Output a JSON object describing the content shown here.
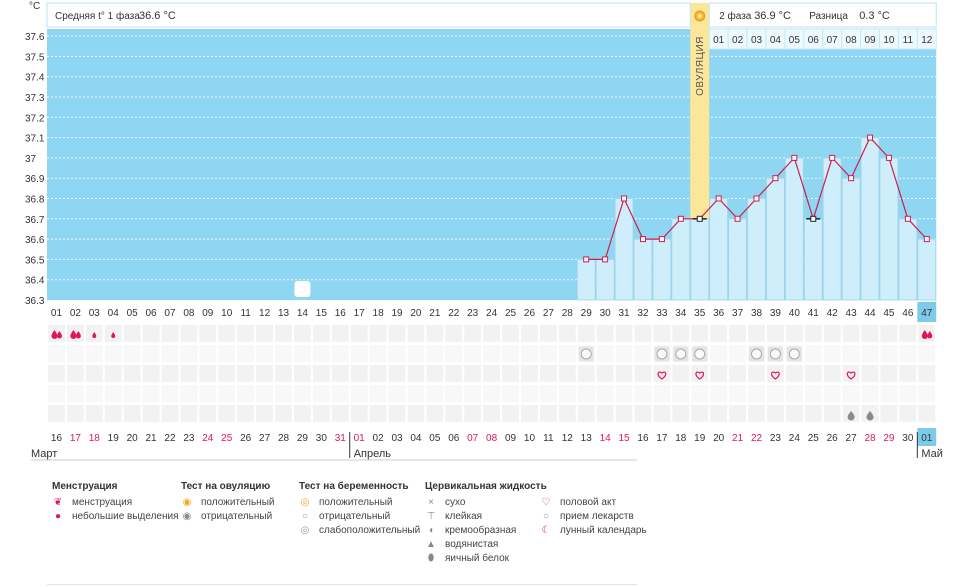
{
  "chart_data": {
    "type": "line",
    "unit_label": "°С",
    "y_ticks": [
      "37.6",
      "37.5",
      "37.4",
      "37.3",
      "37.2",
      "37.1",
      "37",
      "36.9",
      "36.8",
      "36.7",
      "36.6",
      "36.5",
      "36.4",
      "36.3"
    ],
    "ylim": [
      36.3,
      37.7
    ],
    "phase1_label": "Средняя t° 1 фаза",
    "phase1_value": "36.6 °C",
    "phase2_label": "2 фаза",
    "phase2_value": "36.9 °C",
    "diff_label": "Разница",
    "diff_value": "0.3 °C",
    "ovulation_label": "ОВУЛЯЦИЯ",
    "ovulation_day": 35,
    "luteal_day_labels": [
      "01",
      "02",
      "03",
      "04",
      "05",
      "06",
      "07",
      "08",
      "09",
      "10",
      "11",
      "12"
    ],
    "cycle_days": [
      "01",
      "02",
      "03",
      "04",
      "05",
      "06",
      "07",
      "08",
      "09",
      "10",
      "11",
      "12",
      "13",
      "14",
      "15",
      "16",
      "17",
      "18",
      "19",
      "20",
      "21",
      "22",
      "23",
      "24",
      "25",
      "26",
      "27",
      "28",
      "29",
      "30",
      "31",
      "32",
      "33",
      "34",
      "35",
      "36",
      "37",
      "38",
      "39",
      "40",
      "41",
      "42",
      "43",
      "44",
      "45",
      "46",
      "47"
    ],
    "temperature": [
      {
        "day": 29,
        "value": 36.5
      },
      {
        "day": 30,
        "value": 36.5
      },
      {
        "day": 31,
        "value": 36.8
      },
      {
        "day": 32,
        "value": 36.6
      },
      {
        "day": 33,
        "value": 36.6
      },
      {
        "day": 34,
        "value": 36.7
      },
      {
        "day": 35,
        "value": 36.7
      },
      {
        "day": 36,
        "value": 36.8
      },
      {
        "day": 37,
        "value": 36.7
      },
      {
        "day": 38,
        "value": 36.8
      },
      {
        "day": 39,
        "value": 36.9
      },
      {
        "day": 40,
        "value": 37.0
      },
      {
        "day": 41,
        "value": 36.7
      },
      {
        "day": 42,
        "value": 37.0
      },
      {
        "day": 43,
        "value": 36.9
      },
      {
        "day": 44,
        "value": 37.1
      },
      {
        "day": 45,
        "value": 37.0
      },
      {
        "day": 46,
        "value": 36.7
      },
      {
        "day": 47,
        "value": 36.6
      }
    ],
    "dates": [
      "16",
      "17",
      "18",
      "19",
      "20",
      "21",
      "22",
      "23",
      "24",
      "25",
      "26",
      "27",
      "28",
      "29",
      "30",
      "31",
      "01",
      "02",
      "03",
      "04",
      "05",
      "06",
      "07",
      "08",
      "09",
      "10",
      "11",
      "12",
      "13",
      "14",
      "15",
      "16",
      "17",
      "18",
      "19",
      "20",
      "21",
      "22",
      "23",
      "24",
      "25",
      "26",
      "27",
      "28",
      "29",
      "30",
      "01"
    ],
    "weekend_indices": [
      1,
      2,
      8,
      9,
      15,
      16,
      22,
      23,
      29,
      30,
      36,
      37,
      43,
      44
    ],
    "months": [
      {
        "label": "Март",
        "start_index": 0
      },
      {
        "label": "Апрель",
        "start_index": 16
      },
      {
        "label": "Май",
        "start_index": 46
      }
    ],
    "moon_day": 14,
    "menstruation": [
      {
        "day": 1,
        "type": "heavy"
      },
      {
        "day": 2,
        "type": "heavy"
      },
      {
        "day": 3,
        "type": "light"
      },
      {
        "day": 4,
        "type": "light"
      },
      {
        "day": 47,
        "type": "heavy"
      }
    ],
    "pregnancy_tests": [
      29,
      33,
      34,
      35,
      38,
      39,
      40
    ],
    "intercourse": [
      33,
      35,
      39,
      43
    ],
    "cervical_watery": [
      43,
      44
    ]
  },
  "legend": [
    {
      "title": "Менструация",
      "items": [
        {
          "icon": "drop-large-icon",
          "label": "менструация"
        },
        {
          "icon": "drop-small-icon",
          "label": "небольшие выделения"
        }
      ]
    },
    {
      "title": "Тест на овуляцию",
      "items": [
        {
          "icon": "sun-positive-icon",
          "label": "положительный"
        },
        {
          "icon": "sun-negative-icon",
          "label": "отрицательный"
        }
      ]
    },
    {
      "title": "Тест на беременность",
      "items": [
        {
          "icon": "test-positive-icon",
          "label": "положительный"
        },
        {
          "icon": "test-negative-icon",
          "label": "отрицательный"
        },
        {
          "icon": "test-weak-icon",
          "label": "слабоположительный"
        }
      ]
    },
    {
      "title": "Цервикальная жидкость",
      "items": [
        {
          "icon": "cross-icon",
          "label": "сухо"
        },
        {
          "icon": "t-icon",
          "label": "клейкая"
        },
        {
          "icon": "cream-icon",
          "label": "кремообразная"
        },
        {
          "icon": "drop-grey-icon",
          "label": "водянистая"
        },
        {
          "icon": "egg-icon",
          "label": "яичный белок"
        }
      ]
    },
    {
      "title": "",
      "items": [
        {
          "icon": "heart-icon",
          "label": "половой акт"
        },
        {
          "icon": "pill-icon",
          "label": "прием лекарств"
        },
        {
          "icon": "moon-icon",
          "label": "лунный календарь"
        }
      ]
    }
  ],
  "colors": {
    "sky": "#8fd6f2",
    "bar": "#cfeefb",
    "bar_edge": "#9fd3ea",
    "line": "#cc1f4f",
    "ovulation": "#fbe69a",
    "pink": "#e0165a",
    "selected": "#7ecbe9"
  }
}
